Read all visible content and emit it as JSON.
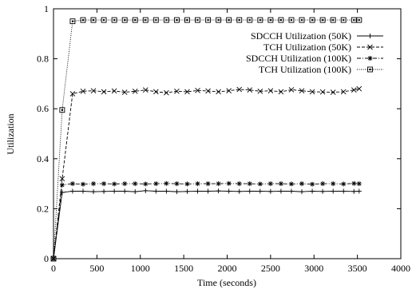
{
  "chart_data": {
    "type": "line",
    "title": "",
    "xlabel": "Time (seconds)",
    "ylabel": "Utilization",
    "xlim": [
      0,
      4000
    ],
    "ylim": [
      0,
      1
    ],
    "x_ticks": [
      0,
      500,
      1000,
      1500,
      2000,
      2500,
      3000,
      3500,
      4000
    ],
    "y_ticks": [
      0,
      0.2,
      0.4,
      0.6,
      0.8,
      1
    ],
    "x_tick_labels": [
      "0",
      "500",
      "1000",
      "1500",
      "2000",
      "2500",
      "3000",
      "3500",
      "4000"
    ],
    "y_tick_labels": [
      "0",
      "0.2",
      "0.4",
      "0.6",
      "0.8",
      "1"
    ],
    "grid": false,
    "legend_position": "top-right",
    "series": [
      {
        "name": "SDCCH Utilization (50K)",
        "marker": "plus",
        "line_style": "solid",
        "x": [
          0,
          100,
          220,
          340,
          460,
          580,
          700,
          820,
          940,
          1060,
          1180,
          1300,
          1420,
          1540,
          1660,
          1780,
          1900,
          2020,
          2140,
          2260,
          2380,
          2500,
          2620,
          2740,
          2860,
          2980,
          3100,
          3220,
          3340,
          3460,
          3520
        ],
        "y": [
          0,
          0.265,
          0.27,
          0.27,
          0.268,
          0.269,
          0.27,
          0.27,
          0.268,
          0.272,
          0.27,
          0.27,
          0.268,
          0.269,
          0.27,
          0.27,
          0.271,
          0.27,
          0.269,
          0.27,
          0.27,
          0.269,
          0.27,
          0.27,
          0.268,
          0.27,
          0.269,
          0.27,
          0.27,
          0.269,
          0.27
        ]
      },
      {
        "name": "TCH Utilization (50K)",
        "marker": "x",
        "line_style": "dashed",
        "x": [
          0,
          100,
          220,
          340,
          460,
          580,
          700,
          820,
          940,
          1060,
          1180,
          1300,
          1420,
          1540,
          1660,
          1780,
          1900,
          2020,
          2140,
          2260,
          2380,
          2500,
          2620,
          2740,
          2860,
          2980,
          3100,
          3220,
          3340,
          3460,
          3520
        ],
        "y": [
          0,
          0.32,
          0.66,
          0.67,
          0.672,
          0.668,
          0.671,
          0.666,
          0.67,
          0.675,
          0.668,
          0.664,
          0.67,
          0.668,
          0.673,
          0.671,
          0.668,
          0.672,
          0.677,
          0.675,
          0.67,
          0.672,
          0.668,
          0.676,
          0.672,
          0.668,
          0.667,
          0.666,
          0.668,
          0.675,
          0.68
        ]
      },
      {
        "name": "SDCCH Utilization (100K)",
        "marker": "asterisk",
        "line_style": "dash-dot",
        "x": [
          0,
          100,
          220,
          340,
          460,
          580,
          700,
          820,
          940,
          1060,
          1180,
          1300,
          1420,
          1540,
          1660,
          1780,
          1900,
          2020,
          2140,
          2260,
          2380,
          2500,
          2620,
          2740,
          2860,
          2980,
          3100,
          3220,
          3340,
          3460,
          3520
        ],
        "y": [
          0,
          0.295,
          0.3,
          0.298,
          0.3,
          0.3,
          0.299,
          0.3,
          0.3,
          0.299,
          0.3,
          0.301,
          0.3,
          0.299,
          0.3,
          0.3,
          0.3,
          0.301,
          0.3,
          0.3,
          0.299,
          0.3,
          0.3,
          0.299,
          0.3,
          0.298,
          0.3,
          0.3,
          0.299,
          0.301,
          0.3
        ]
      },
      {
        "name": "TCH Utilization (100K)",
        "marker": "square",
        "line_style": "dotted",
        "x": [
          0,
          100,
          220,
          340,
          460,
          580,
          700,
          820,
          940,
          1060,
          1180,
          1300,
          1420,
          1540,
          1660,
          1780,
          1900,
          2020,
          2140,
          2260,
          2380,
          2500,
          2620,
          2740,
          2860,
          2980,
          3100,
          3220,
          3340,
          3460,
          3520
        ],
        "y": [
          0,
          0.595,
          0.95,
          0.955,
          0.955,
          0.955,
          0.955,
          0.955,
          0.955,
          0.955,
          0.955,
          0.955,
          0.955,
          0.955,
          0.955,
          0.955,
          0.955,
          0.955,
          0.955,
          0.955,
          0.955,
          0.955,
          0.955,
          0.955,
          0.955,
          0.955,
          0.955,
          0.955,
          0.955,
          0.955,
          0.955
        ]
      }
    ]
  }
}
